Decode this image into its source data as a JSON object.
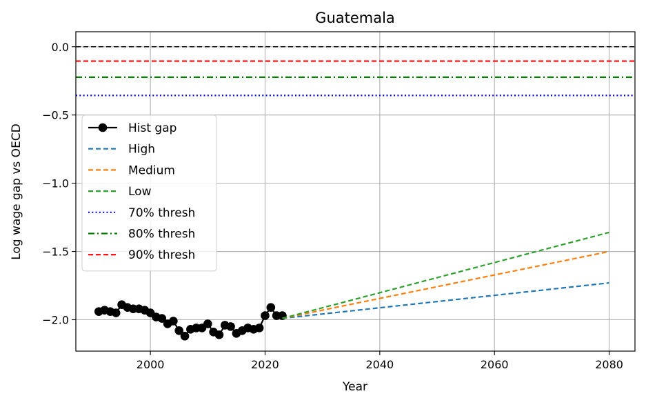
{
  "chart_data": {
    "type": "line",
    "title": "Guatemala",
    "xlabel": "Year",
    "ylabel": "Log wage gap vs OECD",
    "xlim": [
      1987,
      2084.5
    ],
    "ylim": [
      -2.23,
      0.11
    ],
    "xticks": [
      2000,
      2020,
      2040,
      2060,
      2080
    ],
    "yticks": [
      0.0,
      -0.5,
      -1.0,
      -1.5,
      -2.0
    ],
    "xtick_labels": [
      "2000",
      "2020",
      "2040",
      "2060",
      "2080"
    ],
    "ytick_labels": [
      "0.0",
      "−0.5",
      "−1.0",
      "−1.5",
      "−2.0"
    ],
    "grid": true,
    "legend_position": "center-left",
    "reference_lines": [
      {
        "y": 0.0,
        "color": "#000000",
        "style": "dashed"
      }
    ],
    "series": [
      {
        "name": "Hist gap",
        "color": "#000000",
        "style": "solid-marker",
        "x": [
          1991,
          1992,
          1993,
          1994,
          1995,
          1996,
          1997,
          1998,
          1999,
          2000,
          2001,
          2002,
          2003,
          2004,
          2005,
          2006,
          2007,
          2008,
          2009,
          2010,
          2011,
          2012,
          2013,
          2014,
          2015,
          2016,
          2017,
          2018,
          2019,
          2020,
          2021,
          2022,
          2023
        ],
        "y": [
          -1.94,
          -1.93,
          -1.94,
          -1.95,
          -1.89,
          -1.91,
          -1.92,
          -1.92,
          -1.93,
          -1.95,
          -1.98,
          -1.99,
          -2.03,
          -2.01,
          -2.08,
          -2.12,
          -2.07,
          -2.06,
          -2.06,
          -2.03,
          -2.09,
          -2.11,
          -2.04,
          -2.05,
          -2.1,
          -2.08,
          -2.06,
          -2.07,
          -2.06,
          -1.97,
          -1.91,
          -1.97,
          -1.97
        ]
      },
      {
        "name": "High",
        "color": "#1f77b4",
        "style": "dashed",
        "x": [
          2023,
          2080
        ],
        "y": [
          -1.99,
          -1.73
        ]
      },
      {
        "name": "Medium",
        "color": "#ff7f0e",
        "style": "dashed",
        "x": [
          2023,
          2080
        ],
        "y": [
          -1.99,
          -1.5
        ]
      },
      {
        "name": "Low",
        "color": "#2ca02c",
        "style": "dashed",
        "x": [
          2023,
          2080
        ],
        "y": [
          -1.99,
          -1.36
        ]
      },
      {
        "name": "70% thresh",
        "color": "#0000ff",
        "style": "dotted",
        "y_const": -0.357
      },
      {
        "name": "80% thresh",
        "color": "#008000",
        "style": "dashdot",
        "y_const": -0.223
      },
      {
        "name": "90% thresh",
        "color": "#ff0000",
        "style": "dashed",
        "y_const": -0.105
      }
    ]
  }
}
